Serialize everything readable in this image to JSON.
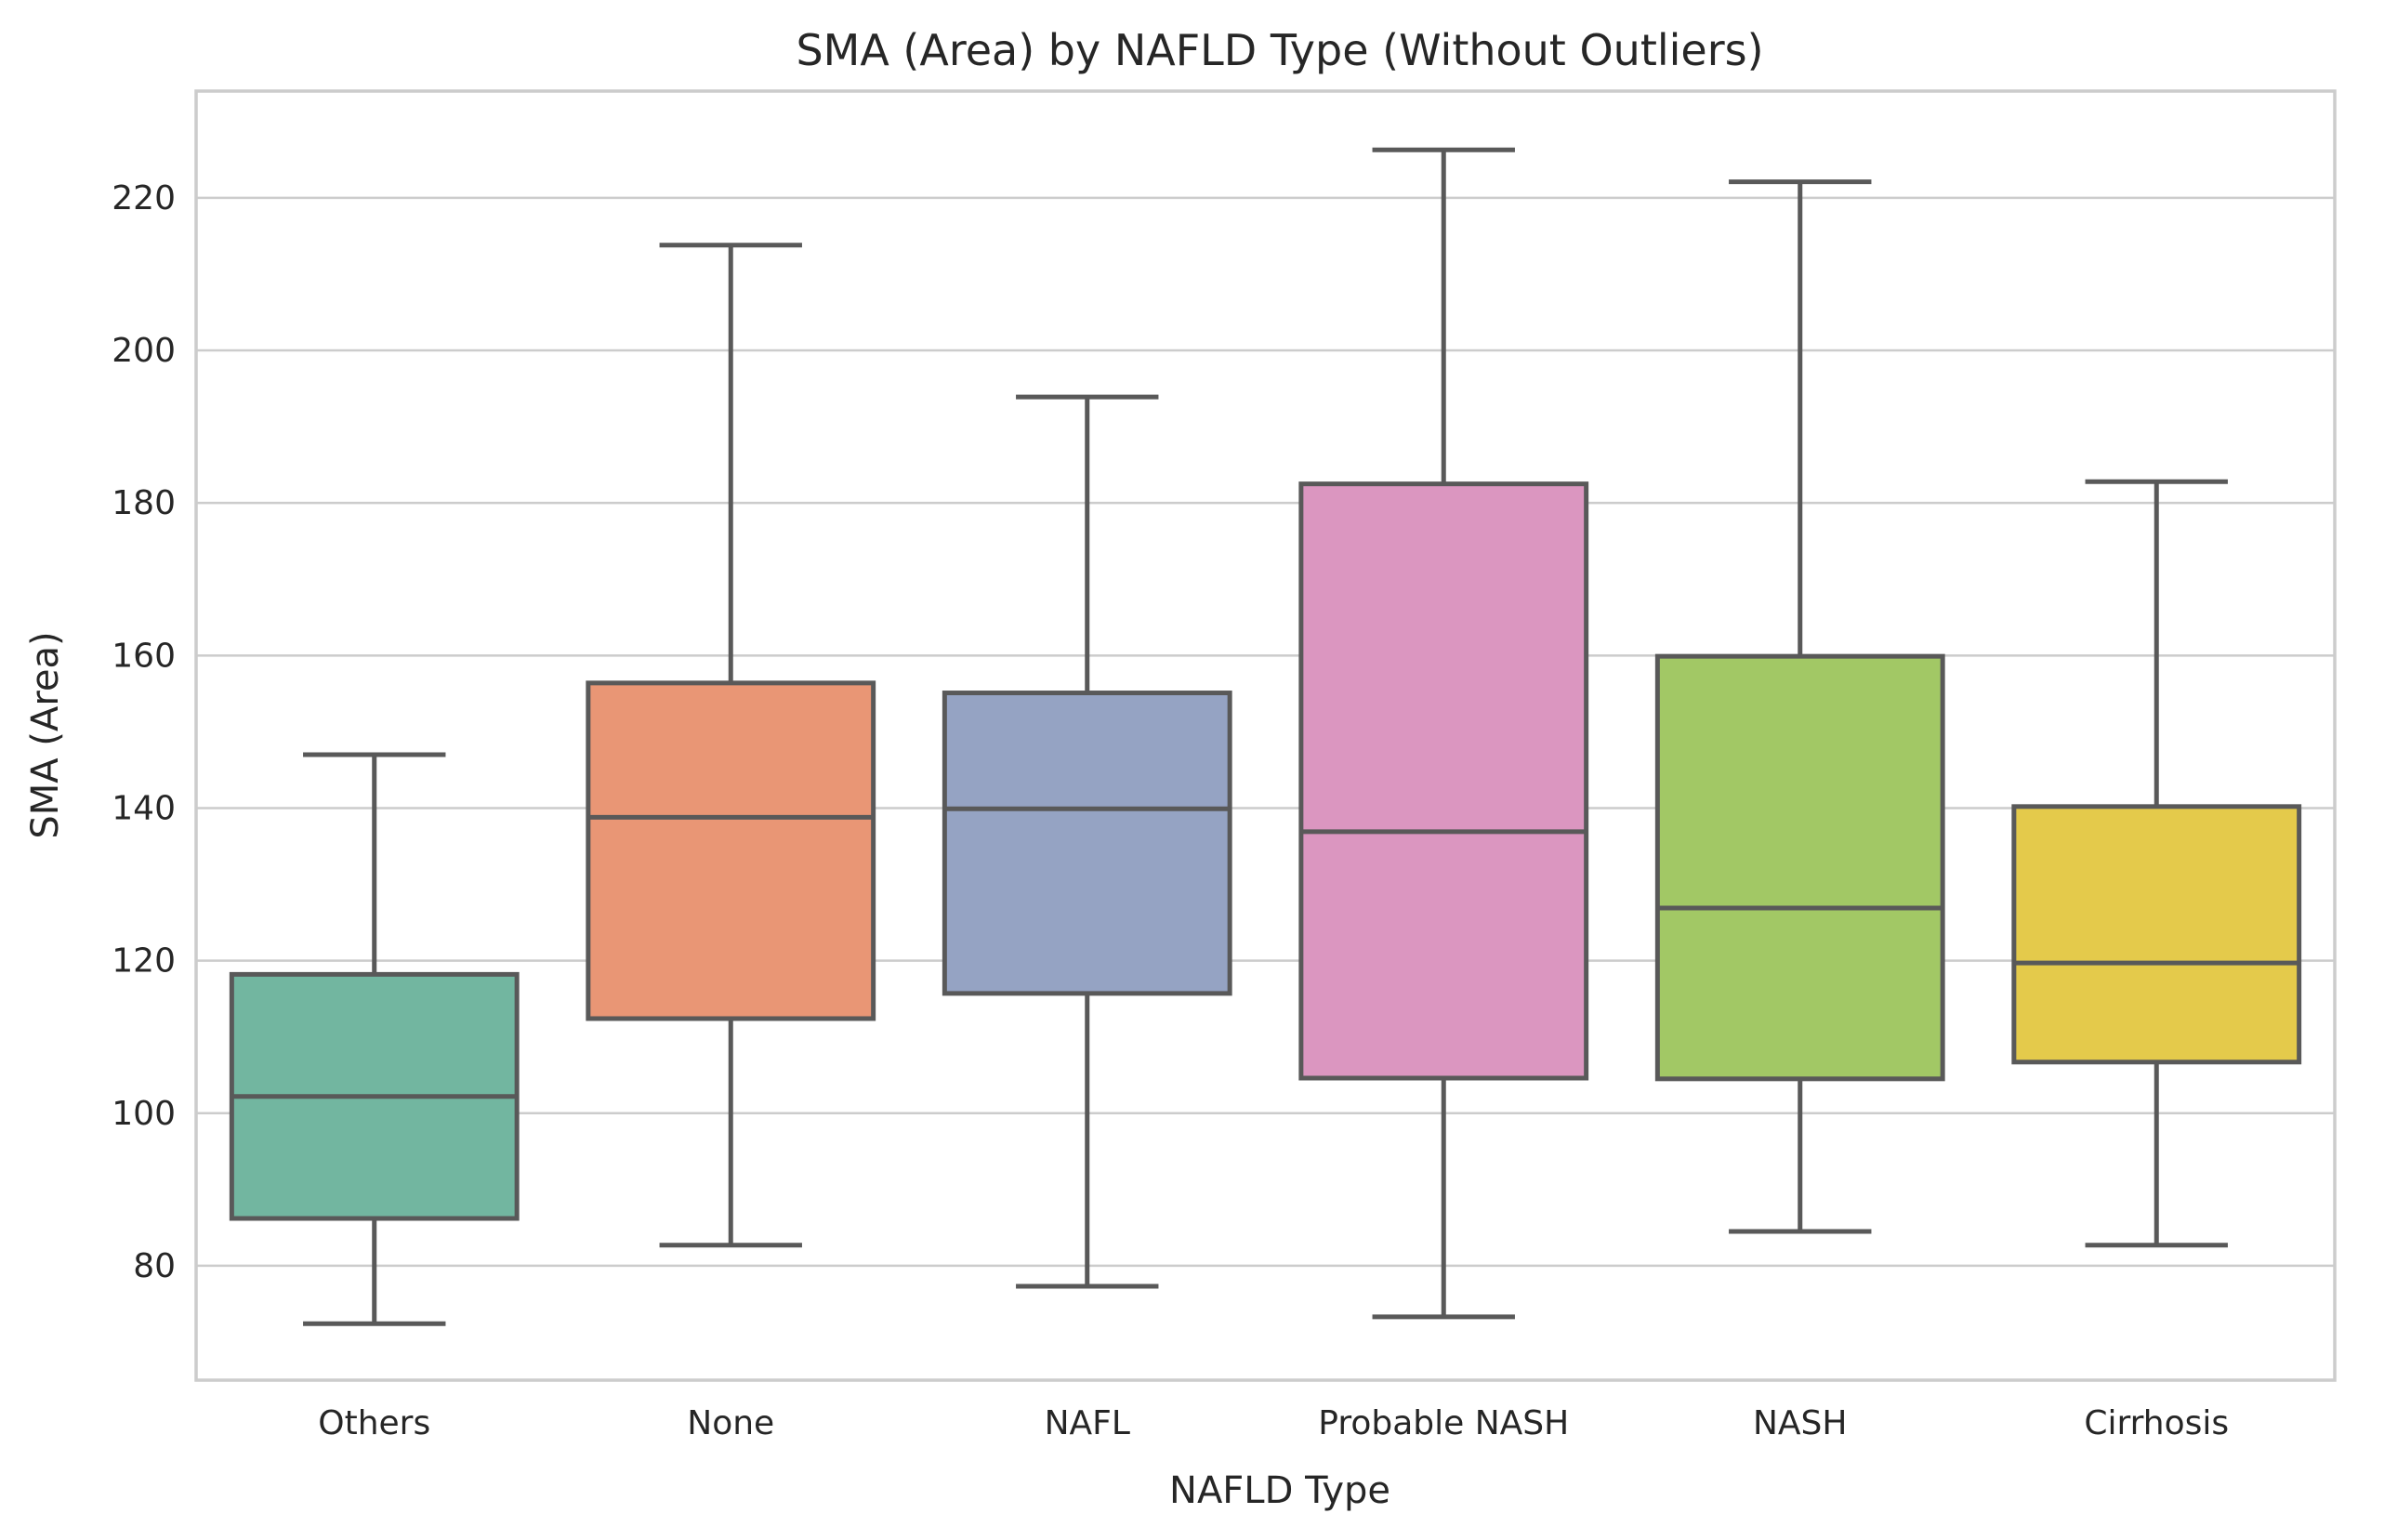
{
  "chart_data": {
    "type": "box",
    "title": "SMA (Area) by NAFLD Type (Without Outliers)",
    "xlabel": "NAFLD Type",
    "ylabel": "SMA (Area)",
    "ylim": [
      65,
      234
    ],
    "yticks": [
      80,
      100,
      120,
      140,
      160,
      180,
      200,
      220
    ],
    "grid": true,
    "categories": [
      "Others",
      "None",
      "NAFL",
      "Probable NASH",
      "NASH",
      "Cirrhosis"
    ],
    "series": [
      {
        "whisker_low": 72.4,
        "q1": 86.2,
        "median": 102.2,
        "q3": 118.2,
        "whisker_high": 147.0,
        "color": "#72b6a0"
      },
      {
        "whisker_low": 82.7,
        "q1": 112.4,
        "median": 138.8,
        "q3": 156.4,
        "whisker_high": 213.8,
        "color": "#e99675"
      },
      {
        "whisker_low": 77.3,
        "q1": 115.7,
        "median": 139.9,
        "q3": 155.1,
        "whisker_high": 193.9,
        "color": "#95a3c3"
      },
      {
        "whisker_low": 73.3,
        "q1": 104.6,
        "median": 136.9,
        "q3": 182.5,
        "whisker_high": 226.3,
        "color": "#db96c0"
      },
      {
        "whisker_low": 84.5,
        "q1": 104.5,
        "median": 126.9,
        "q3": 159.9,
        "whisker_high": 222.1,
        "color": "#a2c865"
      },
      {
        "whisker_low": 82.7,
        "q1": 106.7,
        "median": 119.7,
        "q3": 140.2,
        "whisker_high": 182.8,
        "color": "#e4ca4b"
      }
    ]
  }
}
